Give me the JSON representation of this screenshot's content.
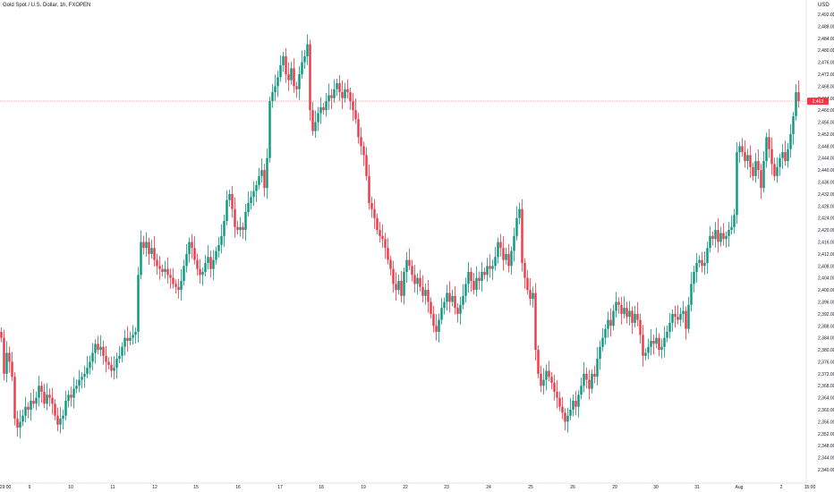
{
  "header": {
    "symbol_title": "Gold Spot / U.S. Dollar, 1h, FXOPEN",
    "currency": "USD"
  },
  "colors": {
    "up": "#089981",
    "down": "#f23645",
    "price_line": "#f23645",
    "grid": "#f0f3fa",
    "text": "#131722"
  },
  "price_tag": {
    "value": "2,463",
    "color": "#f23645"
  },
  "chart_data": {
    "type": "candlestick",
    "title": "Gold Spot / U.S. Dollar, 1h, FXOPEN",
    "ylabel": "USD",
    "ylim": [
      2338,
      2498
    ],
    "y_ticks": [
      "2,340.00",
      "2,344.00",
      "2,348.00",
      "2,352.00",
      "2,356.00",
      "2,360.00",
      "2,364.00",
      "2,368.00",
      "2,372.00",
      "2,376.00",
      "2,380.00",
      "2,384.00",
      "2,388.00",
      "2,392.00",
      "2,396.00",
      "2,400.00",
      "2,404.00",
      "2,408.00",
      "2,412.00",
      "2,416.00",
      "2,420.00",
      "2,424.00",
      "2,428.00",
      "2,432.00",
      "2,436.00",
      "2,440.00",
      "2,444.00",
      "2,448.00",
      "2,452.00",
      "2,456.00",
      "2,460.00",
      "2,464.00",
      "2,468.00",
      "2,472.00",
      "2,476.00",
      "2,480.00",
      "2,484.00",
      "2,488.00",
      "2,492.00"
    ],
    "x_ticks": [
      "29:00",
      "9",
      "10",
      "11",
      "12",
      "15",
      "16",
      "17",
      "18",
      "19",
      "22",
      "23",
      "24",
      "25",
      "26",
      "29",
      "30",
      "31",
      "Aug",
      "2",
      "15:00"
    ],
    "last_price": 2463,
    "series": [
      {
        "x": 0,
        "close": 2384
      },
      {
        "x": 3,
        "close": 2372
      },
      {
        "x": 6,
        "close": 2379
      },
      {
        "x": 9,
        "close": 2376
      },
      {
        "x": 12,
        "close": 2371
      },
      {
        "x": 15,
        "close": 2357
      },
      {
        "x": 18,
        "close": 2354
      },
      {
        "x": 21,
        "close": 2356
      },
      {
        "x": 24,
        "close": 2358
      },
      {
        "x": 27,
        "close": 2361
      },
      {
        "x": 30,
        "close": 2360
      },
      {
        "x": 33,
        "close": 2363
      },
      {
        "x": 36,
        "close": 2362
      },
      {
        "x": 39,
        "close": 2364
      },
      {
        "x": 42,
        "close": 2368
      },
      {
        "x": 45,
        "close": 2366
      },
      {
        "x": 48,
        "close": 2362
      },
      {
        "x": 51,
        "close": 2365
      },
      {
        "x": 54,
        "close": 2364
      },
      {
        "x": 57,
        "close": 2362
      },
      {
        "x": 60,
        "close": 2358
      },
      {
        "x": 63,
        "close": 2355
      },
      {
        "x": 66,
        "close": 2357
      },
      {
        "x": 69,
        "close": 2358
      },
      {
        "x": 72,
        "close": 2363
      },
      {
        "x": 75,
        "close": 2365
      },
      {
        "x": 78,
        "close": 2364
      },
      {
        "x": 81,
        "close": 2367
      },
      {
        "x": 84,
        "close": 2368
      },
      {
        "x": 87,
        "close": 2370
      },
      {
        "x": 90,
        "close": 2371
      },
      {
        "x": 93,
        "close": 2372
      },
      {
        "x": 96,
        "close": 2374
      },
      {
        "x": 99,
        "close": 2376
      },
      {
        "x": 102,
        "close": 2379
      },
      {
        "x": 105,
        "close": 2382
      },
      {
        "x": 108,
        "close": 2380
      },
      {
        "x": 111,
        "close": 2381
      },
      {
        "x": 114,
        "close": 2378
      },
      {
        "x": 117,
        "close": 2376
      },
      {
        "x": 120,
        "close": 2375
      },
      {
        "x": 123,
        "close": 2373
      },
      {
        "x": 126,
        "close": 2374
      },
      {
        "x": 129,
        "close": 2377
      },
      {
        "x": 132,
        "close": 2378
      },
      {
        "x": 135,
        "close": 2381
      },
      {
        "x": 138,
        "close": 2384
      },
      {
        "x": 141,
        "close": 2383
      },
      {
        "x": 144,
        "close": 2384
      },
      {
        "x": 147,
        "close": 2385
      },
      {
        "x": 150,
        "close": 2386
      },
      {
        "x": 153,
        "close": 2405
      },
      {
        "x": 156,
        "close": 2416
      },
      {
        "x": 159,
        "close": 2414
      },
      {
        "x": 162,
        "close": 2416
      },
      {
        "x": 165,
        "close": 2412
      },
      {
        "x": 168,
        "close": 2414
      },
      {
        "x": 171,
        "close": 2410
      },
      {
        "x": 174,
        "close": 2408
      },
      {
        "x": 177,
        "close": 2407
      },
      {
        "x": 180,
        "close": 2406
      },
      {
        "x": 183,
        "close": 2407
      },
      {
        "x": 186,
        "close": 2405
      },
      {
        "x": 189,
        "close": 2404
      },
      {
        "x": 192,
        "close": 2402
      },
      {
        "x": 195,
        "close": 2401
      },
      {
        "x": 198,
        "close": 2400
      },
      {
        "x": 201,
        "close": 2403
      },
      {
        "x": 204,
        "close": 2408
      },
      {
        "x": 207,
        "close": 2412
      },
      {
        "x": 210,
        "close": 2416
      },
      {
        "x": 213,
        "close": 2414
      },
      {
        "x": 216,
        "close": 2410
      },
      {
        "x": 219,
        "close": 2407
      },
      {
        "x": 222,
        "close": 2405
      },
      {
        "x": 225,
        "close": 2406
      },
      {
        "x": 228,
        "close": 2409
      },
      {
        "x": 231,
        "close": 2411
      },
      {
        "x": 234,
        "close": 2407
      },
      {
        "x": 237,
        "close": 2410
      },
      {
        "x": 240,
        "close": 2413
      },
      {
        "x": 243,
        "close": 2415
      },
      {
        "x": 246,
        "close": 2418
      },
      {
        "x": 249,
        "close": 2423
      },
      {
        "x": 252,
        "close": 2430
      },
      {
        "x": 255,
        "close": 2432
      },
      {
        "x": 258,
        "close": 2427
      },
      {
        "x": 261,
        "close": 2421
      },
      {
        "x": 264,
        "close": 2420
      },
      {
        "x": 267,
        "close": 2421
      },
      {
        "x": 270,
        "close": 2420
      },
      {
        "x": 273,
        "close": 2426
      },
      {
        "x": 276,
        "close": 2429
      },
      {
        "x": 279,
        "close": 2431
      },
      {
        "x": 282,
        "close": 2433
      },
      {
        "x": 285,
        "close": 2435
      },
      {
        "x": 288,
        "close": 2438
      },
      {
        "x": 291,
        "close": 2440
      },
      {
        "x": 294,
        "close": 2434
      },
      {
        "x": 297,
        "close": 2444
      },
      {
        "x": 300,
        "close": 2463
      },
      {
        "x": 303,
        "close": 2466
      },
      {
        "x": 306,
        "close": 2468
      },
      {
        "x": 309,
        "close": 2471
      },
      {
        "x": 312,
        "close": 2475
      },
      {
        "x": 315,
        "close": 2478
      },
      {
        "x": 318,
        "close": 2472
      },
      {
        "x": 321,
        "close": 2470
      },
      {
        "x": 324,
        "close": 2474
      },
      {
        "x": 327,
        "close": 2468
      },
      {
        "x": 330,
        "close": 2467
      },
      {
        "x": 333,
        "close": 2472
      },
      {
        "x": 336,
        "close": 2476
      },
      {
        "x": 339,
        "close": 2478
      },
      {
        "x": 342,
        "close": 2482
      },
      {
        "x": 345,
        "close": 2460
      },
      {
        "x": 348,
        "close": 2453
      },
      {
        "x": 351,
        "close": 2456
      },
      {
        "x": 354,
        "close": 2459
      },
      {
        "x": 357,
        "close": 2461
      },
      {
        "x": 360,
        "close": 2460
      },
      {
        "x": 363,
        "close": 2463
      },
      {
        "x": 366,
        "close": 2465
      },
      {
        "x": 369,
        "close": 2464
      },
      {
        "x": 372,
        "close": 2467
      },
      {
        "x": 375,
        "close": 2469
      },
      {
        "x": 378,
        "close": 2466
      },
      {
        "x": 381,
        "close": 2464
      },
      {
        "x": 384,
        "close": 2467
      },
      {
        "x": 387,
        "close": 2466
      },
      {
        "x": 390,
        "close": 2463
      },
      {
        "x": 393,
        "close": 2460
      },
      {
        "x": 396,
        "close": 2457
      },
      {
        "x": 399,
        "close": 2451
      },
      {
        "x": 402,
        "close": 2448
      },
      {
        "x": 405,
        "close": 2445
      },
      {
        "x": 408,
        "close": 2438
      },
      {
        "x": 411,
        "close": 2429
      },
      {
        "x": 414,
        "close": 2427
      },
      {
        "x": 417,
        "close": 2424
      },
      {
        "x": 420,
        "close": 2420
      },
      {
        "x": 423,
        "close": 2418
      },
      {
        "x": 426,
        "close": 2417
      },
      {
        "x": 429,
        "close": 2414
      },
      {
        "x": 432,
        "close": 2410
      },
      {
        "x": 435,
        "close": 2407
      },
      {
        "x": 438,
        "close": 2402
      },
      {
        "x": 441,
        "close": 2400
      },
      {
        "x": 444,
        "close": 2403
      },
      {
        "x": 447,
        "close": 2398
      },
      {
        "x": 450,
        "close": 2406
      },
      {
        "x": 453,
        "close": 2410
      },
      {
        "x": 456,
        "close": 2408
      },
      {
        "x": 459,
        "close": 2405
      },
      {
        "x": 462,
        "close": 2402
      },
      {
        "x": 465,
        "close": 2404
      },
      {
        "x": 468,
        "close": 2401
      },
      {
        "x": 471,
        "close": 2398
      },
      {
        "x": 474,
        "close": 2400
      },
      {
        "x": 477,
        "close": 2396
      },
      {
        "x": 480,
        "close": 2392
      },
      {
        "x": 483,
        "close": 2388
      },
      {
        "x": 486,
        "close": 2386
      },
      {
        "x": 489,
        "close": 2390
      },
      {
        "x": 492,
        "close": 2394
      },
      {
        "x": 495,
        "close": 2396
      },
      {
        "x": 498,
        "close": 2399
      },
      {
        "x": 501,
        "close": 2396
      },
      {
        "x": 504,
        "close": 2398
      },
      {
        "x": 507,
        "close": 2394
      },
      {
        "x": 510,
        "close": 2392
      },
      {
        "x": 513,
        "close": 2395
      },
      {
        "x": 516,
        "close": 2398
      },
      {
        "x": 519,
        "close": 2402
      },
      {
        "x": 522,
        "close": 2406
      },
      {
        "x": 525,
        "close": 2403
      },
      {
        "x": 528,
        "close": 2400
      },
      {
        "x": 531,
        "close": 2404
      },
      {
        "x": 534,
        "close": 2403
      },
      {
        "x": 537,
        "close": 2406
      },
      {
        "x": 540,
        "close": 2405
      },
      {
        "x": 543,
        "close": 2408
      },
      {
        "x": 546,
        "close": 2407
      },
      {
        "x": 549,
        "close": 2408
      },
      {
        "x": 552,
        "close": 2411
      },
      {
        "x": 555,
        "close": 2416
      },
      {
        "x": 558,
        "close": 2414
      },
      {
        "x": 561,
        "close": 2410
      },
      {
        "x": 564,
        "close": 2412
      },
      {
        "x": 567,
        "close": 2408
      },
      {
        "x": 570,
        "close": 2413
      },
      {
        "x": 573,
        "close": 2418
      },
      {
        "x": 576,
        "close": 2424
      },
      {
        "x": 579,
        "close": 2427
      },
      {
        "x": 582,
        "close": 2409
      },
      {
        "x": 585,
        "close": 2404
      },
      {
        "x": 588,
        "close": 2400
      },
      {
        "x": 591,
        "close": 2397
      },
      {
        "x": 594,
        "close": 2399
      },
      {
        "x": 597,
        "close": 2380
      },
      {
        "x": 600,
        "close": 2372
      },
      {
        "x": 603,
        "close": 2368
      },
      {
        "x": 606,
        "close": 2370
      },
      {
        "x": 609,
        "close": 2373
      },
      {
        "x": 612,
        "close": 2371
      },
      {
        "x": 615,
        "close": 2369
      },
      {
        "x": 618,
        "close": 2366
      },
      {
        "x": 621,
        "close": 2364
      },
      {
        "x": 624,
        "close": 2361
      },
      {
        "x": 627,
        "close": 2359
      },
      {
        "x": 630,
        "close": 2356
      },
      {
        "x": 633,
        "close": 2358
      },
      {
        "x": 636,
        "close": 2360
      },
      {
        "x": 639,
        "close": 2363
      },
      {
        "x": 642,
        "close": 2361
      },
      {
        "x": 645,
        "close": 2365
      },
      {
        "x": 648,
        "close": 2368
      },
      {
        "x": 651,
        "close": 2372
      },
      {
        "x": 654,
        "close": 2370
      },
      {
        "x": 657,
        "close": 2367
      },
      {
        "x": 660,
        "close": 2372
      },
      {
        "x": 663,
        "close": 2371
      },
      {
        "x": 666,
        "close": 2377
      },
      {
        "x": 669,
        "close": 2381
      },
      {
        "x": 672,
        "close": 2384
      },
      {
        "x": 675,
        "close": 2387
      },
      {
        "x": 678,
        "close": 2390
      },
      {
        "x": 681,
        "close": 2388
      },
      {
        "x": 684,
        "close": 2393
      },
      {
        "x": 687,
        "close": 2396
      },
      {
        "x": 690,
        "close": 2395
      },
      {
        "x": 693,
        "close": 2392
      },
      {
        "x": 696,
        "close": 2394
      },
      {
        "x": 699,
        "close": 2391
      },
      {
        "x": 702,
        "close": 2393
      },
      {
        "x": 705,
        "close": 2389
      },
      {
        "x": 708,
        "close": 2392
      },
      {
        "x": 711,
        "close": 2390
      },
      {
        "x": 714,
        "close": 2385
      },
      {
        "x": 717,
        "close": 2378
      },
      {
        "x": 720,
        "close": 2379
      },
      {
        "x": 723,
        "close": 2381
      },
      {
        "x": 726,
        "close": 2383
      },
      {
        "x": 729,
        "close": 2382
      },
      {
        "x": 732,
        "close": 2384
      },
      {
        "x": 735,
        "close": 2380
      },
      {
        "x": 738,
        "close": 2381
      },
      {
        "x": 741,
        "close": 2384
      },
      {
        "x": 744,
        "close": 2386
      },
      {
        "x": 747,
        "close": 2389
      },
      {
        "x": 750,
        "close": 2392
      },
      {
        "x": 753,
        "close": 2391
      },
      {
        "x": 756,
        "close": 2390
      },
      {
        "x": 759,
        "close": 2392
      },
      {
        "x": 762,
        "close": 2393
      },
      {
        "x": 765,
        "close": 2387
      },
      {
        "x": 768,
        "close": 2395
      },
      {
        "x": 771,
        "close": 2402
      },
      {
        "x": 774,
        "close": 2406
      },
      {
        "x": 777,
        "close": 2409
      },
      {
        "x": 780,
        "close": 2410
      },
      {
        "x": 783,
        "close": 2408
      },
      {
        "x": 786,
        "close": 2409
      },
      {
        "x": 789,
        "close": 2414
      },
      {
        "x": 792,
        "close": 2418
      },
      {
        "x": 795,
        "close": 2417
      },
      {
        "x": 798,
        "close": 2420
      },
      {
        "x": 801,
        "close": 2416
      },
      {
        "x": 804,
        "close": 2419
      },
      {
        "x": 807,
        "close": 2417
      },
      {
        "x": 810,
        "close": 2418
      },
      {
        "x": 813,
        "close": 2420
      },
      {
        "x": 816,
        "close": 2421
      },
      {
        "x": 819,
        "close": 2425
      },
      {
        "x": 822,
        "close": 2446
      },
      {
        "x": 825,
        "close": 2448
      },
      {
        "x": 828,
        "close": 2446
      },
      {
        "x": 831,
        "close": 2443
      },
      {
        "x": 834,
        "close": 2445
      },
      {
        "x": 837,
        "close": 2441
      },
      {
        "x": 840,
        "close": 2438
      },
      {
        "x": 843,
        "close": 2443
      },
      {
        "x": 846,
        "close": 2440
      },
      {
        "x": 849,
        "close": 2434
      },
      {
        "x": 852,
        "close": 2443
      },
      {
        "x": 855,
        "close": 2451
      },
      {
        "x": 858,
        "close": 2447
      },
      {
        "x": 861,
        "close": 2442
      },
      {
        "x": 864,
        "close": 2438
      },
      {
        "x": 867,
        "close": 2441
      },
      {
        "x": 870,
        "close": 2444
      },
      {
        "x": 873,
        "close": 2446
      },
      {
        "x": 876,
        "close": 2443
      },
      {
        "x": 879,
        "close": 2447
      },
      {
        "x": 882,
        "close": 2452
      },
      {
        "x": 885,
        "close": 2458
      },
      {
        "x": 888,
        "close": 2466
      },
      {
        "x": 891,
        "close": 2463
      }
    ]
  }
}
